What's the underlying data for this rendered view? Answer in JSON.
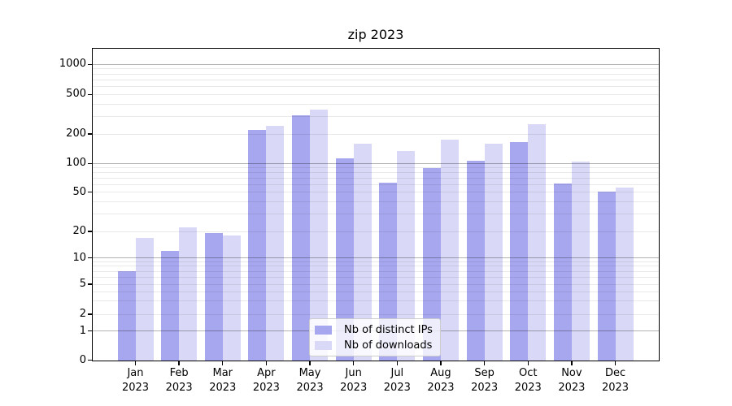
{
  "chart_data": {
    "type": "bar",
    "title": "zip 2023",
    "categories": [
      "Jan 2023",
      "Feb 2023",
      "Mar 2023",
      "Apr 2023",
      "May 2023",
      "Jun 2023",
      "Jul 2023",
      "Aug 2023",
      "Sep 2023",
      "Oct 2023",
      "Nov 2023",
      "Dec 2023"
    ],
    "series": [
      {
        "name": "Nb of distinct IPs",
        "color": "#a7a7f0",
        "values": [
          7,
          12,
          19,
          220,
          310,
          112,
          63,
          90,
          107,
          165,
          62,
          51
        ]
      },
      {
        "name": "Nb of downloads",
        "color": "#d9d9f7",
        "values": [
          17,
          22,
          18,
          240,
          355,
          160,
          135,
          175,
          160,
          250,
          105,
          56
        ]
      }
    ],
    "y_axis": {
      "scale": "symlog",
      "ticks": [
        0,
        1,
        2,
        5,
        10,
        20,
        50,
        100,
        200,
        500,
        1000
      ],
      "range": [
        0,
        1000
      ],
      "major_grid_values": [
        1,
        10,
        100,
        1000
      ]
    },
    "x_axis": {
      "tick_line1": [
        "Jan",
        "Feb",
        "Mar",
        "Apr",
        "May",
        "Jun",
        "Jul",
        "Aug",
        "Sep",
        "Oct",
        "Nov",
        "Dec"
      ],
      "tick_line2": "2023"
    },
    "grid": "on",
    "legend_position": "lower center"
  }
}
